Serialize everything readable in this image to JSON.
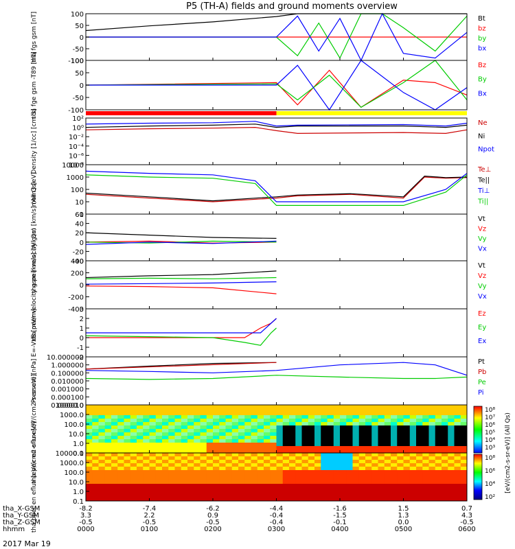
{
  "title": "P5 (TH-A) fields and ground moments overview",
  "date_label": "2017 Mar 19",
  "footer": {
    "rows": [
      {
        "label": "tha_X-GSM",
        "values": [
          "-8.2",
          "-7.4",
          "-6.2",
          "-4.4",
          "-1.6",
          "1.5",
          "0.7"
        ]
      },
      {
        "label": "tha_Y-GSM",
        "values": [
          "3.3",
          "2.2",
          "0.9",
          "-0.4",
          "-1.5",
          "1.3",
          "4.3"
        ]
      },
      {
        "label": "tha_Z-GSM",
        "values": [
          "-0.5",
          "-0.5",
          "-0.5",
          "-0.4",
          "-0.1",
          "0.0",
          "-0.5"
        ]
      },
      {
        "label": "hhmm",
        "values": [
          "0000",
          "0100",
          "0200",
          "0300",
          "0400",
          "0500",
          "0600"
        ]
      }
    ]
  },
  "colorbar": {
    "labels": [
      "10^8",
      "10^7",
      "10^6",
      "10^5",
      "10^4",
      "10^3"
    ],
    "lower_labels": [
      "10^8",
      "10^6",
      "10^4",
      "10^2"
    ],
    "title": "[eV/(cm2-s-sr-eV)] (All Qs)"
  },
  "mode_bar": {
    "red_until_hhmm": "0300",
    "colors": [
      "#ff0000",
      "#ffff00"
    ]
  },
  "chart_data": [
    {
      "type": "line",
      "panel": "fgs",
      "ylabel": "tha fgs gsm [nT]",
      "ylim": [
        -100,
        100
      ],
      "yticks": [
        "100",
        "50",
        "0",
        "-50",
        "-100"
      ],
      "series": [
        {
          "name": "Bt",
          "color": "#000000",
          "x": [
            0,
            60,
            120,
            180,
            200,
            220,
            300,
            360
          ],
          "y": [
            28,
            48,
            65,
            88,
            100,
            100,
            100,
            100
          ]
        },
        {
          "name": "bz",
          "color": "#ff0000",
          "x": [
            0,
            360
          ],
          "y": [
            0,
            0
          ]
        },
        {
          "name": "by",
          "color": "#00cc00",
          "x": [
            0,
            180,
            200,
            220,
            240,
            260,
            280,
            300,
            330,
            360
          ],
          "y": [
            0,
            0,
            -80,
            60,
            -90,
            100,
            100,
            40,
            -60,
            90
          ]
        },
        {
          "name": "bx",
          "color": "#0000ff",
          "x": [
            0,
            180,
            200,
            220,
            240,
            260,
            280,
            300,
            330,
            360
          ],
          "y": [
            0,
            0,
            90,
            -60,
            80,
            -100,
            100,
            -70,
            -90,
            20
          ]
        }
      ]
    },
    {
      "type": "line",
      "panel": "fge",
      "ylabel": "tha fge gsm -T89 [nT]",
      "ylim": [
        -100,
        100
      ],
      "yticks": [
        "100",
        "50",
        "0",
        "-50",
        "-100"
      ],
      "series": [
        {
          "name": "Bz",
          "color": "#ff0000",
          "x": [
            0,
            180,
            200,
            230,
            260,
            300,
            330,
            360
          ],
          "y": [
            0,
            10,
            -80,
            60,
            -90,
            20,
            10,
            -40
          ]
        },
        {
          "name": "By",
          "color": "#00cc00",
          "x": [
            0,
            180,
            200,
            230,
            260,
            300,
            330,
            360
          ],
          "y": [
            0,
            5,
            -60,
            40,
            -90,
            10,
            100,
            -60
          ]
        },
        {
          "name": "Bx",
          "color": "#0000ff",
          "x": [
            0,
            180,
            200,
            230,
            260,
            300,
            330,
            360
          ],
          "y": [
            0,
            0,
            80,
            -110,
            100,
            -30,
            -100,
            -10
          ]
        }
      ]
    },
    {
      "type": "line",
      "panel": "density",
      "ylabel": "Density [1/cc] [cm-3]",
      "ylim": [
        1e-08,
        100
      ],
      "yscale": "log",
      "yticks": [
        "10^2",
        "10^0",
        "10^-2",
        "10^-4",
        "10^-6",
        "10^-8"
      ],
      "series": [
        {
          "name": "Ne",
          "color": "#cc0000",
          "x": [
            0,
            60,
            120,
            160,
            180,
            200,
            300,
            340,
            360
          ],
          "y": [
            0.3,
            0.5,
            0.7,
            1,
            0.2,
            0.05,
            0.08,
            0.05,
            0.3
          ]
        },
        {
          "name": "Ni",
          "color": "#000000",
          "x": [
            0,
            60,
            120,
            160,
            180,
            200,
            300,
            340,
            360
          ],
          "y": [
            1,
            2,
            3,
            5,
            1,
            2,
            2,
            1,
            3
          ]
        },
        {
          "name": "Npot",
          "color": "#0000ff",
          "x": [
            0,
            60,
            120,
            160,
            180,
            200,
            300,
            340,
            360
          ],
          "y": [
            5,
            8,
            10,
            20,
            2,
            3,
            4,
            2,
            8
          ]
        }
      ]
    },
    {
      "type": "line",
      "panel": "temperature",
      "ylabel": "mom3 [eV]",
      "ylim": [
        1,
        10000
      ],
      "yscale": "log",
      "yticks": [
        "10000",
        "1000",
        "100",
        "10",
        "1"
      ],
      "series": [
        {
          "name": "Te⊥",
          "color": "#cc0000",
          "x": [
            0,
            60,
            120,
            180,
            200,
            250,
            300,
            320,
            340,
            360
          ],
          "y": [
            40,
            20,
            10,
            20,
            30,
            40,
            20,
            1000,
            800,
            900
          ]
        },
        {
          "name": "Te||",
          "color": "#000000",
          "x": [
            0,
            60,
            120,
            180,
            200,
            250,
            300,
            320,
            340,
            360
          ],
          "y": [
            50,
            25,
            12,
            25,
            35,
            45,
            25,
            1200,
            900,
            1000
          ]
        },
        {
          "name": "Ti⊥",
          "color": "#0000ff",
          "x": [
            0,
            60,
            120,
            160,
            180,
            200,
            300,
            340,
            360
          ],
          "y": [
            3000,
            2000,
            1500,
            500,
            10,
            10,
            10,
            100,
            2000
          ]
        },
        {
          "name": "Ti||",
          "color": "#00cc00",
          "x": [
            0,
            60,
            120,
            160,
            180,
            200,
            300,
            340,
            360
          ],
          "y": [
            1500,
            1000,
            800,
            300,
            5,
            5,
            5,
            60,
            1500
          ]
        }
      ]
    },
    {
      "type": "line",
      "panel": "pei_velocity",
      "ylabel": "tha peir velocity gsm [km/s] (All Qs)",
      "ylim": [
        -40,
        60
      ],
      "yticks": [
        "60",
        "40",
        "20",
        "0",
        "-20",
        "-40"
      ],
      "series": [
        {
          "name": "Vt",
          "color": "#000000",
          "x": [
            0,
            60,
            120,
            180
          ],
          "y": [
            20,
            15,
            10,
            8
          ]
        },
        {
          "name": "Vz",
          "color": "#ff0000",
          "x": [
            0,
            60,
            120,
            180
          ],
          "y": [
            0,
            2,
            -2,
            0
          ]
        },
        {
          "name": "Vy",
          "color": "#00cc00",
          "x": [
            0,
            60,
            120,
            180
          ],
          "y": [
            0,
            -2,
            2,
            0
          ]
        },
        {
          "name": "Vx",
          "color": "#0000ff",
          "x": [
            0,
            60,
            120,
            180
          ],
          "y": [
            -5,
            0,
            -3,
            2
          ]
        }
      ]
    },
    {
      "type": "line",
      "panel": "pee_velocity",
      "ylabel": "tha peer velocity gsm [km/s] (All Qs)",
      "ylim": [
        -400,
        400
      ],
      "yticks": [
        "400",
        "200",
        "0",
        "-200",
        "-400"
      ],
      "series": [
        {
          "name": "Vt",
          "color": "#000000",
          "x": [
            0,
            60,
            120,
            180
          ],
          "y": [
            120,
            150,
            170,
            230
          ]
        },
        {
          "name": "Vz",
          "color": "#ff0000",
          "x": [
            0,
            60,
            120,
            180
          ],
          "y": [
            -20,
            -30,
            -50,
            -150
          ]
        },
        {
          "name": "Vy",
          "color": "#00cc00",
          "x": [
            0,
            60,
            120,
            180
          ],
          "y": [
            100,
            110,
            100,
            120
          ]
        },
        {
          "name": "Vx",
          "color": "#0000ff",
          "x": [
            0,
            60,
            120,
            180
          ],
          "y": [
            10,
            20,
            30,
            50
          ]
        }
      ]
    },
    {
      "type": "line",
      "panel": "efield",
      "ylabel": "E=-VxB [mV/m]",
      "ylim": [
        -2,
        3
      ],
      "yticks": [
        "3",
        "2",
        "1",
        "0",
        "-1",
        "-2"
      ],
      "series": [
        {
          "name": "Ez",
          "color": "#ff0000",
          "x": [
            0,
            60,
            120,
            150,
            165,
            175,
            180
          ],
          "y": [
            0,
            0,
            0,
            0,
            1,
            1.5,
            2
          ]
        },
        {
          "name": "Ey",
          "color": "#00cc00",
          "x": [
            0,
            60,
            120,
            150,
            165,
            175,
            180
          ],
          "y": [
            0.2,
            0.1,
            0,
            -0.5,
            -0.8,
            0.5,
            1
          ]
        },
        {
          "name": "Ex",
          "color": "#0000ff",
          "x": [
            0,
            60,
            120,
            150,
            165,
            175,
            180
          ],
          "y": [
            0.5,
            0.5,
            0.5,
            0.5,
            0.5,
            1.5,
            2
          ]
        }
      ]
    },
    {
      "type": "line",
      "panel": "pressure",
      "ylabel": "Pressure [nPa]",
      "ylim": [
        1e-05,
        10
      ],
      "yscale": "log",
      "yticks": [
        "10.000000",
        "1.000000",
        "0.100000",
        "0.010000",
        "0.001000",
        "0.000100",
        "0.000010"
      ],
      "series": [
        {
          "name": "Pt",
          "color": "#000000",
          "x": [
            0,
            60,
            120,
            180
          ],
          "y": [
            0.3,
            0.7,
            1.5,
            2
          ]
        },
        {
          "name": "Pb",
          "color": "#cc0000",
          "x": [
            0,
            180
          ],
          "y": [
            0.3,
            2
          ]
        },
        {
          "name": "Pe",
          "color": "#00cc00",
          "x": [
            0,
            60,
            120,
            180,
            240,
            300,
            330,
            360
          ],
          "y": [
            0.02,
            0.015,
            0.02,
            0.05,
            0.03,
            0.02,
            0.02,
            0.03
          ]
        },
        {
          "name": "Pi",
          "color": "#0000ff",
          "x": [
            0,
            60,
            120,
            180,
            240,
            300,
            330,
            360
          ],
          "y": [
            0.2,
            0.15,
            0.1,
            0.2,
            1,
            2,
            1,
            0.05
          ]
        }
      ]
    },
    {
      "type": "heatmap",
      "panel": "peir_eflux",
      "ylabel": "tha peir en eflux [eV/(cm2-s-sr-eV)]",
      "yscale": "log",
      "ylim": [
        0.1,
        10000
      ],
      "yticks": [
        "10000.0",
        "1000.0",
        "100.0",
        "10.0",
        "1.0",
        "0.1"
      ]
    },
    {
      "type": "heatmap",
      "panel": "peer_eflux",
      "ylabel": "tha peer en eflux [eV/(cm2-s-sr-eV)]",
      "yscale": "log",
      "ylim": [
        0.1,
        10000
      ],
      "yticks": [
        "10000.0",
        "1000.0",
        "100.0",
        "10.0",
        "1.0",
        "0.1"
      ]
    }
  ]
}
